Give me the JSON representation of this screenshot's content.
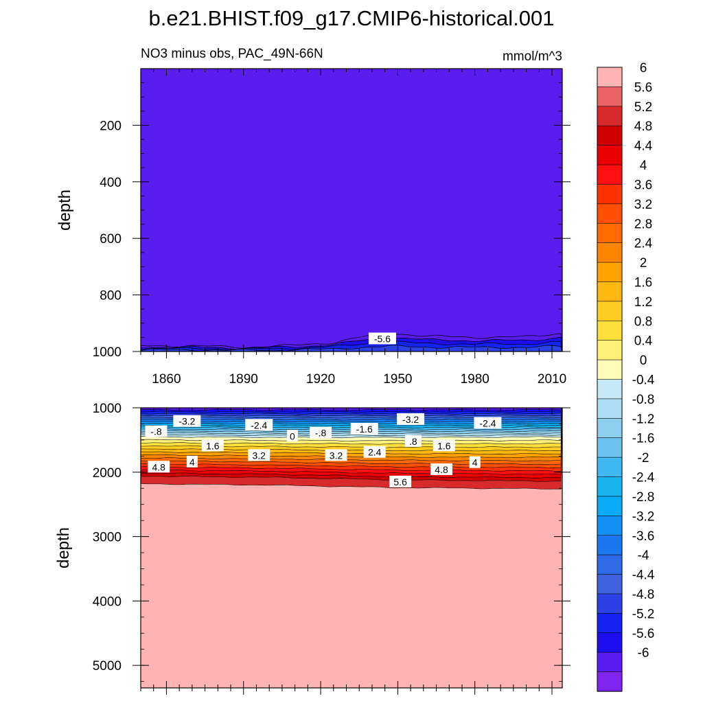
{
  "title": "b.e21.BHIST.f09_g17.CMIP6-historical.001",
  "chart_data": [
    {
      "type": "contour",
      "panel": "upper",
      "subtitle_left": "NO3 minus obs, PAC_49N-66N",
      "subtitle_right": "mmol/m^3",
      "xlabel": "",
      "ylabel": "depth",
      "xlim": [
        1850,
        2014
      ],
      "ylim": [
        1000,
        0
      ],
      "x_ticks": [
        1860,
        1890,
        1920,
        1950,
        1980,
        2010
      ],
      "y_ticks": [
        200,
        400,
        600,
        800,
        1000
      ],
      "fill_value": -6.0,
      "bottom_band_top_depth": {
        "x": [
          1850,
          1870,
          1890,
          1910,
          1925,
          1935,
          1948,
          1960,
          1980,
          2000,
          2014
        ],
        "depth_shallowest_band": [
          980,
          980,
          985,
          978,
          968,
          950,
          935,
          945,
          950,
          948,
          935
        ]
      },
      "contour_labels": [
        {
          "text": "-5.6",
          "x": 1944,
          "y": 955
        }
      ]
    },
    {
      "type": "contour",
      "panel": "lower",
      "xlabel": "",
      "ylabel": "depth",
      "xlim": [
        1850,
        2014
      ],
      "ylim": [
        5350,
        1000
      ],
      "x_ticks": [
        1860,
        1890,
        1920,
        1950,
        1980,
        2010
      ],
      "y_ticks": [
        1000,
        2000,
        3000,
        4000,
        5000
      ],
      "deep_fill_value": 6.0,
      "zero_contour_depth": [
        1450,
        1440,
        1450
      ],
      "level_5_6_depth": {
        "x": [
          1850,
          1900,
          1950,
          2014
        ],
        "depth": [
          2180,
          2200,
          2240,
          2260
        ]
      },
      "contour_labels": [
        {
          "text": "-.8",
          "x": 1856,
          "y": 1370
        },
        {
          "text": "-3.2",
          "x": 1868,
          "y": 1210
        },
        {
          "text": "-2.4",
          "x": 1896,
          "y": 1270
        },
        {
          "text": "0",
          "x": 1909,
          "y": 1440
        },
        {
          "text": "-.8",
          "x": 1920,
          "y": 1390
        },
        {
          "text": "-1.6",
          "x": 1937,
          "y": 1330
        },
        {
          "text": "-3.2",
          "x": 1955,
          "y": 1180
        },
        {
          "text": "-2.4",
          "x": 1985,
          "y": 1240
        },
        {
          "text": "1.6",
          "x": 1878,
          "y": 1590
        },
        {
          "text": "3.2",
          "x": 1896,
          "y": 1740
        },
        {
          "text": "3.2",
          "x": 1926,
          "y": 1740
        },
        {
          "text": "2.4",
          "x": 1941,
          "y": 1690
        },
        {
          "text": ".8",
          "x": 1956,
          "y": 1520
        },
        {
          "text": "1.6",
          "x": 1968,
          "y": 1590
        },
        {
          "text": "4",
          "x": 1870,
          "y": 1840
        },
        {
          "text": "4.8",
          "x": 1857,
          "y": 1920
        },
        {
          "text": "4.8",
          "x": 1967,
          "y": 1960
        },
        {
          "text": "4",
          "x": 1980,
          "y": 1850
        },
        {
          "text": "5.6",
          "x": 1951,
          "y": 2150
        }
      ]
    },
    {
      "type": "colorbar",
      "levels": [
        6,
        5.6,
        5.2,
        4.8,
        4.4,
        4,
        3.6,
        3.2,
        2.8,
        2.4,
        2,
        1.6,
        1.2,
        0.8,
        0.4,
        0,
        -0.4,
        -0.8,
        -1.2,
        -1.6,
        -2,
        -2.4,
        -2.8,
        -3.2,
        -3.6,
        -4,
        -4.4,
        -4.8,
        -5.2,
        -5.6,
        -6
      ],
      "labels": [
        "6",
        "5.6",
        "5.2",
        "4.8",
        "4.4",
        "4",
        "3.6",
        "3.2",
        "2.8",
        "2.4",
        "2",
        "1.6",
        "1.2",
        "0.8",
        "0.4",
        "0",
        "-0.4",
        "-0.8",
        "-1.2",
        "-1.6",
        "-2",
        "-2.4",
        "-2.8",
        "-3.2",
        "-3.6",
        "-4",
        "-4.4",
        "-4.8",
        "-5.2",
        "-5.6",
        "-6"
      ],
      "colors": [
        "#ffb3b3",
        "#eb6466",
        "#d82a2a",
        "#d00000",
        "#ea0000",
        "#ff1010",
        "#ff3300",
        "#ff5000",
        "#ff6a00",
        "#ff8500",
        "#ffa200",
        "#ffb811",
        "#ffcc22",
        "#ffdf3c",
        "#fff07a",
        "#fffbb8",
        "#c7e9f7",
        "#abdcf3",
        "#8fcfee",
        "#6dc1ef",
        "#40b8f2",
        "#18b4f2",
        "#0aaaf6",
        "#1390f8",
        "#1a78f0",
        "#2f6ae8",
        "#3e62dd",
        "#2c42e6",
        "#1422f2",
        "#1c0ef0",
        "#5a1cef",
        "#8024f2"
      ]
    }
  ]
}
